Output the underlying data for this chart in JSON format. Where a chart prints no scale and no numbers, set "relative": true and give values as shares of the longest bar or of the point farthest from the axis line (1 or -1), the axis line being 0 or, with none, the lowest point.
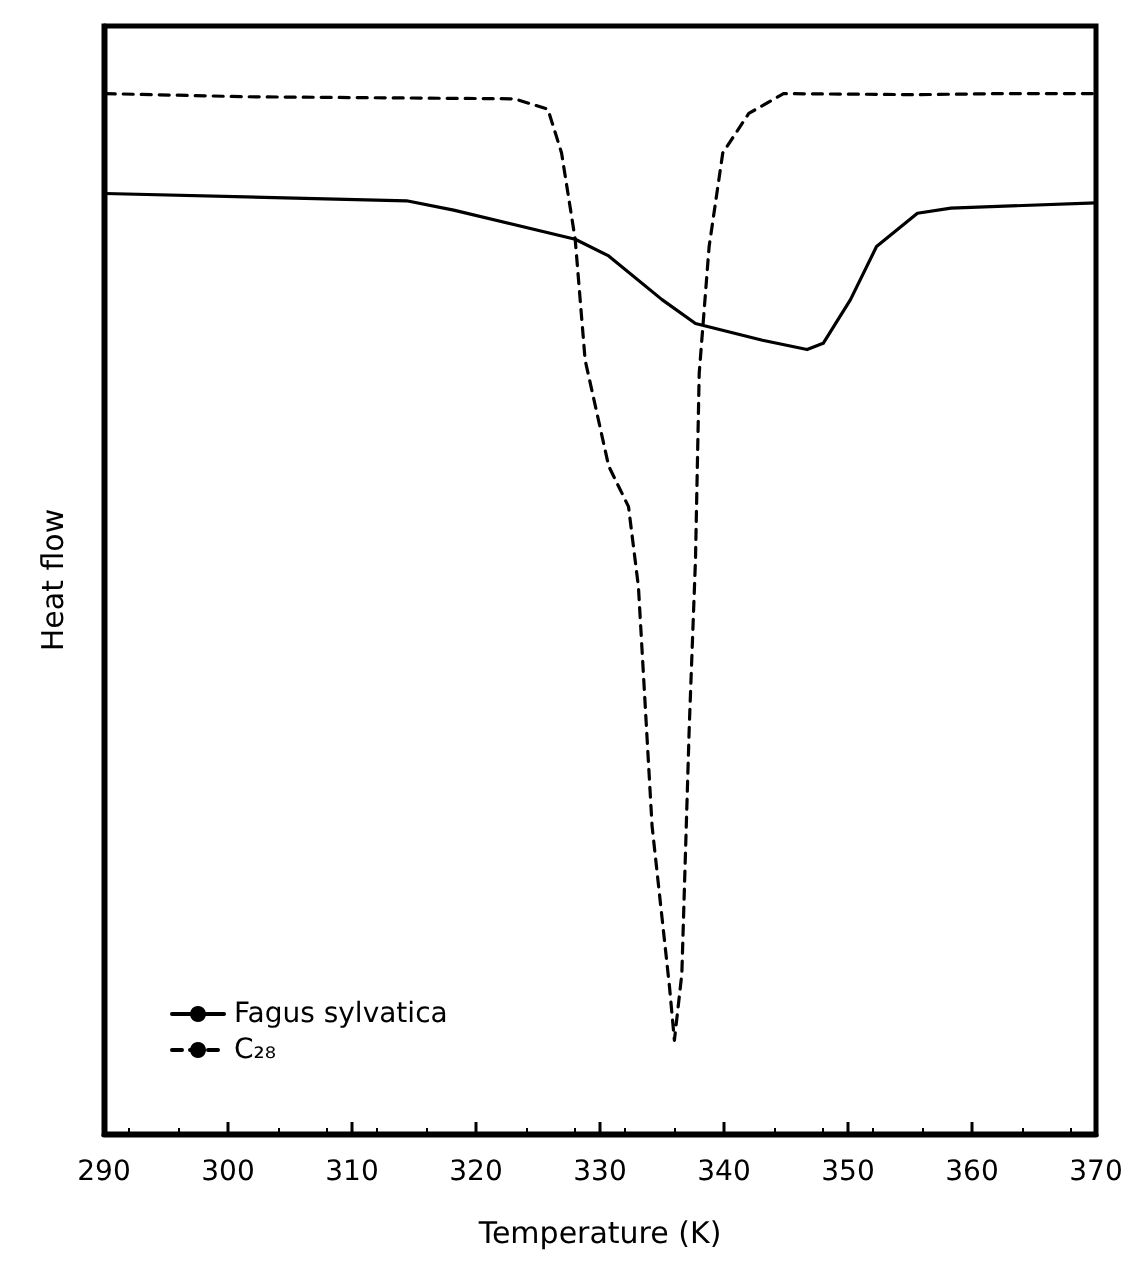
{
  "chart_data": {
    "type": "line",
    "xlabel": "Temperature (K)",
    "ylabel": "Heat flow",
    "relative": true,
    "xlim": [
      290,
      370
    ],
    "xticks": [
      290,
      300,
      310,
      320,
      330,
      340,
      350,
      360,
      370
    ],
    "legend": "bottom left",
    "grid": false,
    "marker": "none",
    "series": [
      {
        "name": "Fagus sylvatica",
        "color": "#000000",
        "line_style": "solid",
        "x": [
          290.1,
          314.4,
          318.2,
          328.0,
          330.7,
          335.0,
          337.7,
          343.1,
          346.7,
          348.0,
          350.2,
          352.3,
          355.6,
          358.3,
          370
        ],
        "values": [
          0.904,
          0.897,
          0.888,
          0.86,
          0.844,
          0.802,
          0.779,
          0.763,
          0.754,
          0.76,
          0.802,
          0.853,
          0.885,
          0.89,
          0.895
        ]
      },
      {
        "name": "C₂₈",
        "color": "#000000",
        "line_style": "dashed",
        "x": [
          290.1,
          301.5,
          323.1,
          325.8,
          326.9,
          328.0,
          328.8,
          330.7,
          332.3,
          333.1,
          334.2,
          335.6,
          336.0,
          336.6,
          337.2,
          337.7,
          338.0,
          338.8,
          339.9,
          342.0,
          344.8,
          355.6,
          362.1,
          370
        ],
        "values": [
          1.0,
          0.997,
          0.995,
          0.985,
          0.943,
          0.86,
          0.744,
          0.642,
          0.603,
          0.526,
          0.296,
          0.142,
          0.09,
          0.154,
          0.392,
          0.552,
          0.731,
          0.853,
          0.943,
          0.981,
          1.0,
          0.999,
          1.0,
          1.0
        ]
      }
    ]
  }
}
